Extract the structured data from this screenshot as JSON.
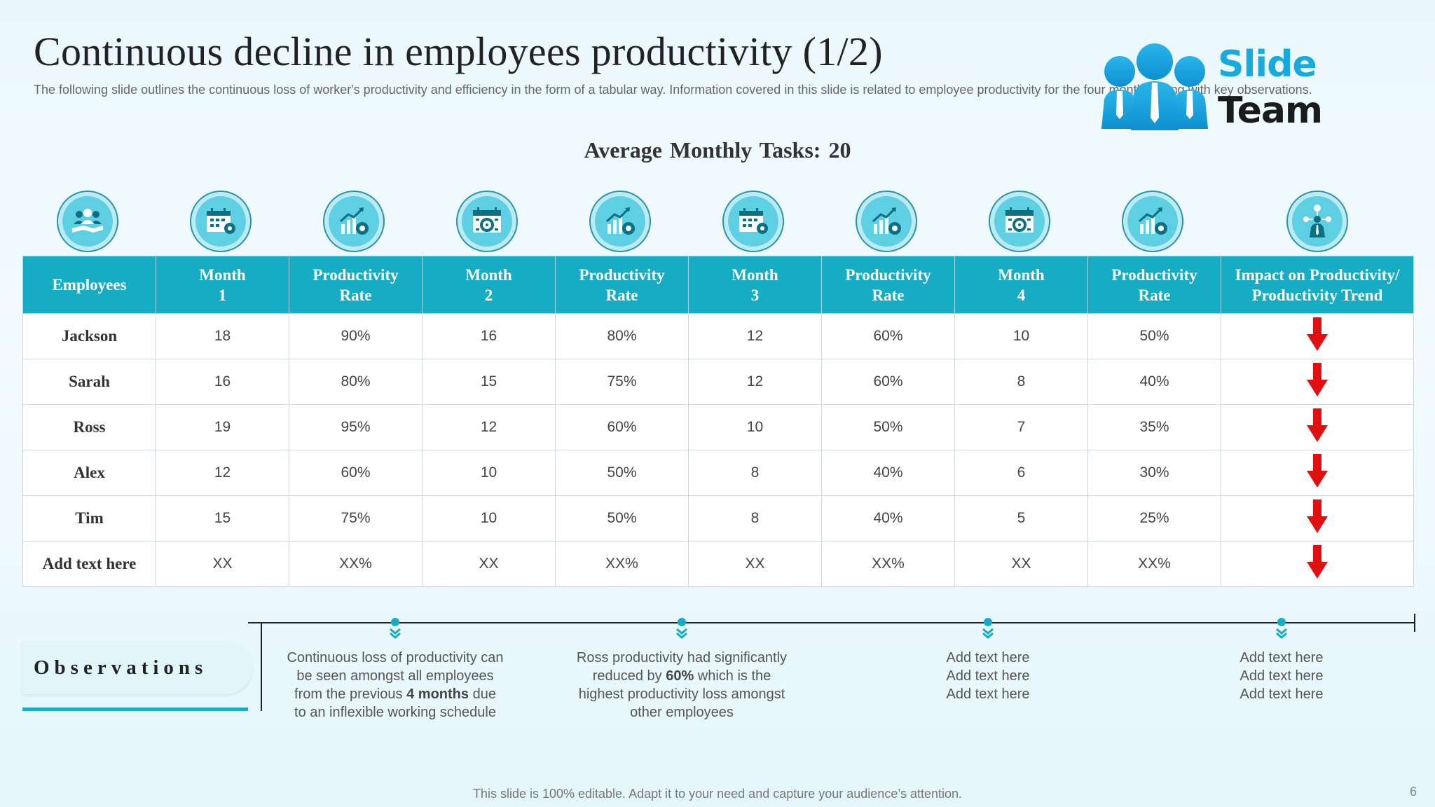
{
  "title": "Continuous decline in employees productivity (1/2)",
  "subtitle": "The following slide outlines the continuous loss of worker's productivity and efficiency in the form of a tabular way. Information covered in this slide is related to employee productivity for the four months along with key observations.",
  "logo": {
    "line1": "Slide",
    "line2": "Team"
  },
  "average_tasks": "Average Monthly Tasks: 20",
  "icons": [
    "team-icon",
    "calendar-icon",
    "growth-chart-icon",
    "calendar-gear-icon",
    "growth-chart-icon",
    "calendar-icon",
    "growth-chart-icon",
    "calendar-gear-icon",
    "growth-chart-icon",
    "employee-network-icon"
  ],
  "table": {
    "headers": [
      [
        "Employees"
      ],
      [
        "Month",
        "1"
      ],
      [
        "Productivity",
        "Rate"
      ],
      [
        "Month",
        "2"
      ],
      [
        "Productivity",
        "Rate"
      ],
      [
        "Month",
        "3"
      ],
      [
        "Productivity",
        "Rate"
      ],
      [
        "Month",
        "4"
      ],
      [
        "Productivity",
        "Rate"
      ],
      [
        "Impact on Productivity/",
        "Productivity Trend"
      ]
    ],
    "rows": [
      [
        "Jackson",
        "18",
        "90%",
        "16",
        "80%",
        "12",
        "60%",
        "10",
        "50%"
      ],
      [
        "Sarah",
        "16",
        "80%",
        "15",
        "75%",
        "12",
        "60%",
        "8",
        "40%"
      ],
      [
        "Ross",
        "19",
        "95%",
        "12",
        "60%",
        "10",
        "50%",
        "7",
        "35%"
      ],
      [
        "Alex",
        "12",
        "60%",
        "10",
        "50%",
        "8",
        "40%",
        "6",
        "30%"
      ],
      [
        "Tim",
        "15",
        "75%",
        "10",
        "50%",
        "8",
        "40%",
        "5",
        "25%"
      ],
      [
        "Add text here",
        "XX",
        "XX%",
        "XX",
        "XX%",
        "XX",
        "XX%",
        "XX",
        "XX%"
      ]
    ],
    "trend": "down",
    "trend_color": "#e01010"
  },
  "observations": {
    "label": "Observations",
    "items": [
      {
        "html": "Continuous loss of productivity can<br>be seen amongst all employees<br>from the previous <b>4 months</b> due<br>to an inflexible working schedule"
      },
      {
        "html": "Ross productivity had significantly<br>reduced by <b>60%</b> which is the<br>highest productivity loss amongst<br>other employees"
      },
      {
        "html": "Add text here<br>Add text here<br>Add text here"
      },
      {
        "html": "Add text here<br>Add text here<br>Add text here"
      }
    ]
  },
  "footer": "This slide is 100% editable. Adapt it to your need and capture your audience’s attention.",
  "page_number": "6",
  "colors": {
    "accent": "#16acc3",
    "arrow": "#e01010",
    "logo_blue": "#18a9dd"
  }
}
